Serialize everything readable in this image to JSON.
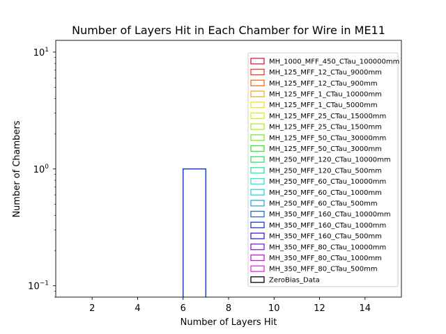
{
  "chart_data": {
    "type": "bar",
    "title": "Number of Layers Hit in Each Chamber for Wire in ME11",
    "xlabel": "Number of Layers Hit",
    "ylabel": "Number of Chambers",
    "xlim": [
      0.4,
      15.6
    ],
    "ylim": [
      0.08,
      12.6
    ],
    "yscale": "log",
    "xticks": [
      2,
      4,
      6,
      8,
      10,
      12,
      14
    ],
    "yticks": [
      {
        "value": 0.1,
        "base": "10",
        "exp": "−1"
      },
      {
        "value": 1,
        "base": "10",
        "exp": "0"
      },
      {
        "value": 10,
        "base": "10",
        "exp": "1"
      }
    ],
    "legend_position": "upper-right",
    "histtype": "step",
    "series": [
      {
        "name": "MH_1000_MFF_450_CTau_100000mm",
        "color": "#e6194b",
        "bins": []
      },
      {
        "name": "MH_125_MFF_12_CTau_9000mm",
        "color": "#f03c1f",
        "bins": []
      },
      {
        "name": "MH_125_MFF_12_CTau_900mm",
        "color": "#f26a10",
        "bins": []
      },
      {
        "name": "MH_125_MFF_1_CTau_10000mm",
        "color": "#f9a81c",
        "bins": []
      },
      {
        "name": "MH_125_MFF_1_CTau_5000mm",
        "color": "#f5e02a",
        "bins": []
      },
      {
        "name": "MH_125_MFF_25_CTau_15000mm",
        "color": "#d8f02a",
        "bins": []
      },
      {
        "name": "MH_125_MFF_25_CTau_1500mm",
        "color": "#a8f02a",
        "bins": []
      },
      {
        "name": "MH_125_MFF_50_CTau_30000mm",
        "color": "#78f02a",
        "bins": []
      },
      {
        "name": "MH_125_MFF_50_CTau_3000mm",
        "color": "#3ce62a",
        "bins": []
      },
      {
        "name": "MH_250_MFF_120_CTau_10000mm",
        "color": "#2ae668",
        "bins": []
      },
      {
        "name": "MH_250_MFF_120_CTau_500mm",
        "color": "#2ae6a4",
        "bins": []
      },
      {
        "name": "MH_250_MFF_60_CTau_10000mm",
        "color": "#2ae6d8",
        "bins": []
      },
      {
        "name": "MH_250_MFF_60_CTau_1000mm",
        "color": "#2ad4ec",
        "bins": []
      },
      {
        "name": "MH_250_MFF_60_CTau_500mm",
        "color": "#2aa8dc",
        "bins": []
      },
      {
        "name": "MH_350_MFF_160_CTau_10000mm",
        "color": "#1f6fd0",
        "bins": []
      },
      {
        "name": "MH_350_MFF_160_CTau_1000mm",
        "color": "#1a3fd6",
        "bins": [
          {
            "x0": 6,
            "x1": 7,
            "value": 1
          }
        ]
      },
      {
        "name": "MH_350_MFF_160_CTau_500mm",
        "color": "#3a1ad6",
        "bins": []
      },
      {
        "name": "MH_350_MFF_80_CTau_10000mm",
        "color": "#8a1ad6",
        "bins": []
      },
      {
        "name": "MH_350_MFF_80_CTau_1000mm",
        "color": "#c21ad6",
        "bins": []
      },
      {
        "name": "MH_350_MFF_80_CTau_500mm",
        "color": "#e62ae0",
        "bins": []
      },
      {
        "name": "ZeroBias_Data",
        "color": "#000000",
        "bins": []
      }
    ]
  }
}
